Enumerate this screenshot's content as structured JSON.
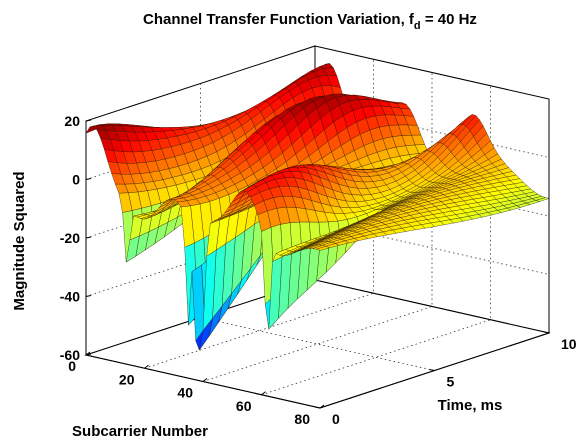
{
  "chart_data": {
    "type": "surface",
    "title": {
      "main": "Channel Transfer Function Variation, f",
      "subscript": "d",
      "suffix": " = 40 Hz"
    },
    "zlabel": "Magnitude Squared",
    "xlabel": "Subcarrier Number",
    "ylabel": "Time, ms",
    "xlim": [
      0,
      80
    ],
    "ylim": [
      0,
      10
    ],
    "zlim": [
      -60,
      20
    ],
    "xticks": [
      "0",
      "20",
      "40",
      "60",
      "80"
    ],
    "yticks": [
      "0",
      "5",
      "10"
    ],
    "zticks": [
      "20",
      "0",
      "-20",
      "-40",
      "-60"
    ],
    "grid": true,
    "colormap": "jet",
    "surface": {
      "subcarrier_range": [
        0,
        80
      ],
      "time_range_ms": [
        0,
        10
      ],
      "baseline_db": -10,
      "peaks": [
        {
          "subcarrier": 4,
          "max_db": 18
        },
        {
          "subcarrier": 28,
          "max_db": 16
        },
        {
          "subcarrier": 52,
          "max_db": 13
        }
      ],
      "deep_fades": [
        {
          "subcarrier": 14,
          "min_db": -30
        },
        {
          "subcarrier": 35,
          "min_db": -48
        },
        {
          "subcarrier": 38,
          "min_db": -58
        },
        {
          "subcarrier": 40,
          "min_db": -44
        },
        {
          "subcarrier": 62,
          "min_db": -45
        }
      ]
    }
  }
}
